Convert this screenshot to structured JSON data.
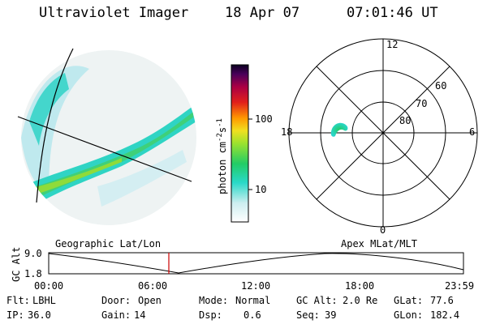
{
  "header": {
    "title": "Ultraviolet Imager",
    "date": "18 Apr 07",
    "time": "07:01:46 UT"
  },
  "colorbar": {
    "unit": "photon cm",
    "unit_exp1": "-2",
    "unit_mid": "s",
    "unit_exp2": "-1",
    "ticks": [
      "100",
      "10"
    ]
  },
  "polar": {
    "mlt_labels": [
      "12",
      "18",
      "6",
      "0"
    ],
    "lat_labels": [
      "60",
      "70",
      "80"
    ]
  },
  "timeline": {
    "left_label": "Geographic Lat/Lon",
    "right_label": "Apex MLat/MLT",
    "y_title": "GC Alt",
    "y_ticks": [
      "9.0",
      "1.8"
    ],
    "x_ticks": [
      "00:00",
      "06:00",
      "12:00",
      "18:00",
      "23:59"
    ],
    "current_time": "07:01:46",
    "cursor_color": "#cc0000"
  },
  "info": {
    "row1": [
      {
        "k": "Flt:",
        "v": "LBHL"
      },
      {
        "k": "Door:",
        "v": "Open"
      },
      {
        "k": "Mode:",
        "v": "Normal"
      },
      {
        "k": "GC Alt:",
        "v": "2.0 Re"
      },
      {
        "k": "GLat:",
        "v": "77.6"
      }
    ],
    "row2": [
      {
        "k": "IP:",
        "v": "36.0"
      },
      {
        "k": "Gain:",
        "v": "14"
      },
      {
        "k": "Dsp:",
        "v": "0.6"
      },
      {
        "k": "Seq:",
        "v": "39"
      },
      {
        "k": "GLon:",
        "v": "182.4"
      }
    ]
  }
}
